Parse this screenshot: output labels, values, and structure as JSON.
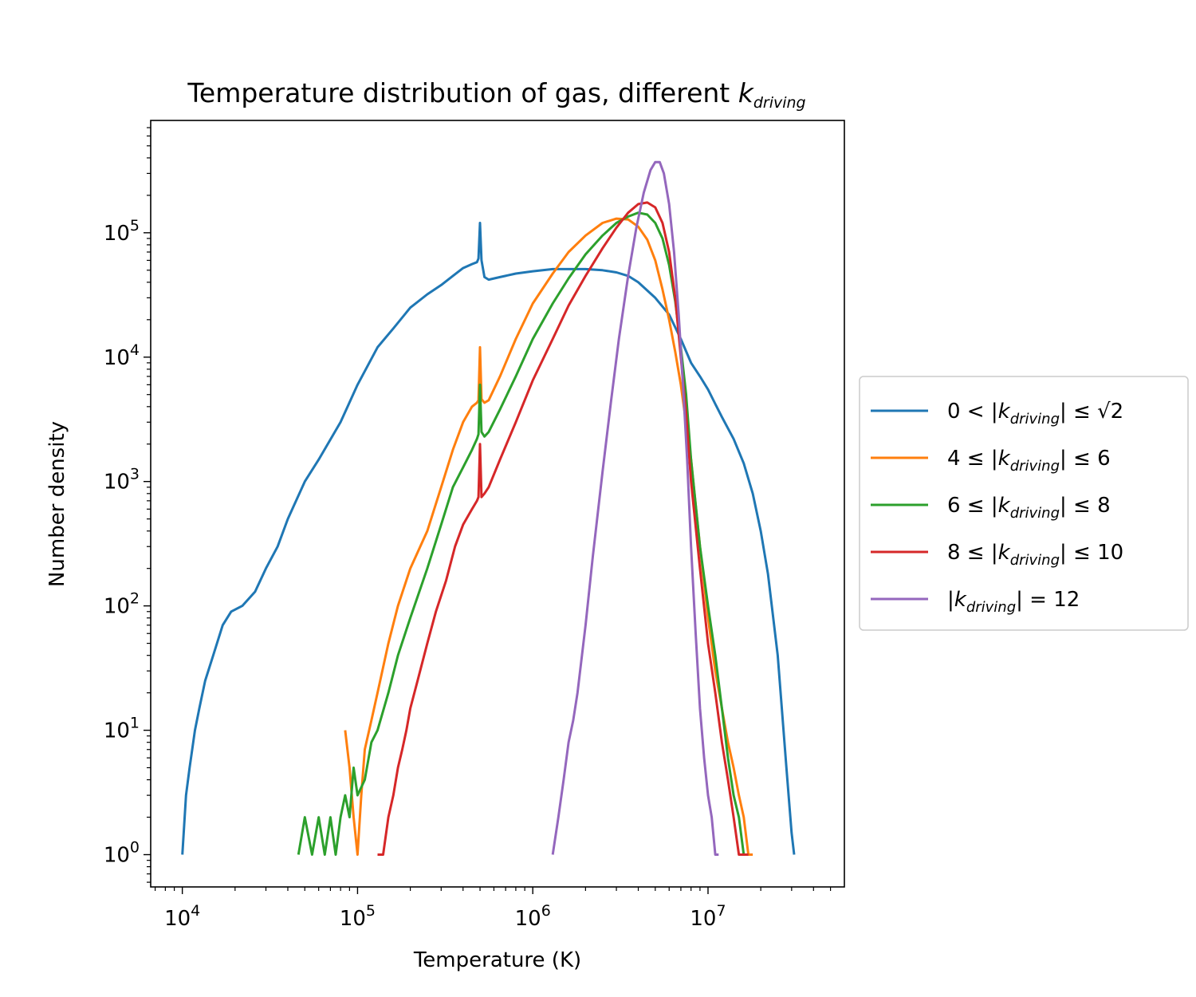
{
  "chart_data": {
    "type": "line",
    "title": {
      "main": "Temperature distribution of gas, different ",
      "symbol": "k",
      "subscript": "driving"
    },
    "xlabel": "Temperature (K)",
    "ylabel": "Number density",
    "x_scale": "log",
    "y_scale": "log",
    "xlim": [
      6600,
      60000000
    ],
    "ylim": [
      0.55,
      800000
    ],
    "x_ticks": [
      {
        "value": 10000,
        "base": "10",
        "exp": "4"
      },
      {
        "value": 100000,
        "base": "10",
        "exp": "5"
      },
      {
        "value": 1000000,
        "base": "10",
        "exp": "6"
      },
      {
        "value": 10000000,
        "base": "10",
        "exp": "7"
      }
    ],
    "y_ticks": [
      {
        "value": 1,
        "base": "10",
        "exp": "0"
      },
      {
        "value": 10,
        "base": "10",
        "exp": "1"
      },
      {
        "value": 100,
        "base": "10",
        "exp": "2"
      },
      {
        "value": 1000,
        "base": "10",
        "exp": "3"
      },
      {
        "value": 10000,
        "base": "10",
        "exp": "4"
      },
      {
        "value": 100000,
        "base": "10",
        "exp": "5"
      }
    ],
    "grid": false,
    "legend_placement": "outside-right",
    "series": [
      {
        "legend": {
          "pre": "0 < |",
          "k": "k",
          "sub": "driving",
          "post": "| ≤ √2"
        },
        "color": "#1f77b4",
        "x": [
          10000,
          10500,
          11000,
          11800,
          12500,
          13500,
          15000,
          17000,
          19000,
          22000,
          26000,
          30000,
          35000,
          40000,
          50000,
          60000,
          80000,
          100000,
          130000,
          160000,
          200000,
          250000,
          300000,
          350000,
          400000,
          450000,
          480000,
          490000,
          500000,
          510000,
          530000,
          560000,
          650000,
          800000,
          1000000,
          1300000,
          1600000,
          2000000,
          2500000,
          3000000,
          3500000,
          4000000,
          5000000,
          6000000,
          7000000,
          8000000,
          9000000,
          10000000,
          11000000,
          12000000,
          14000000,
          16000000,
          18000000,
          20000000,
          22000000,
          25000000,
          28000000,
          30000000,
          31000000
        ],
        "y": [
          1,
          3,
          5,
          10,
          15,
          25,
          40,
          70,
          90,
          100,
          130,
          200,
          300,
          500,
          1000,
          1500,
          3000,
          6000,
          12000,
          17000,
          25000,
          32000,
          38000,
          45000,
          52000,
          56000,
          58000,
          62000,
          120000,
          60000,
          44000,
          42000,
          44000,
          47000,
          49000,
          51000,
          51000,
          51000,
          50000,
          48000,
          45000,
          40000,
          30000,
          22000,
          14000,
          9000,
          7000,
          5500,
          4200,
          3300,
          2200,
          1400,
          800,
          400,
          180,
          40,
          5,
          1.5,
          1
        ]
      },
      {
        "legend": {
          "pre": "4 ≤ |",
          "k": "k",
          "sub": "driving",
          "post": "| ≤ 6"
        },
        "color": "#ff7f0e",
        "x": [
          85000,
          90000,
          95000,
          100000,
          105000,
          110000,
          120000,
          130000,
          150000,
          170000,
          200000,
          250000,
          300000,
          350000,
          400000,
          450000,
          480000,
          490000,
          500000,
          510000,
          530000,
          560000,
          650000,
          800000,
          1000000,
          1300000,
          1600000,
          2000000,
          2500000,
          3000000,
          3500000,
          4000000,
          4500000,
          5000000,
          5500000,
          6000000,
          6500000,
          7000000,
          8000000,
          9000000,
          10000000,
          11000000,
          12000000,
          13000000,
          14000000,
          15000000,
          16000000,
          17000000,
          18000000
        ],
        "y": [
          10,
          5,
          2,
          1,
          3,
          7,
          12,
          20,
          50,
          100,
          200,
          400,
          900,
          1800,
          3000,
          4000,
          4300,
          4500,
          12000,
          4600,
          4300,
          4500,
          7000,
          14000,
          27000,
          47000,
          70000,
          95000,
          120000,
          130000,
          128000,
          112000,
          88000,
          60000,
          35000,
          20000,
          11000,
          6000,
          1500,
          300,
          80,
          30,
          15,
          8,
          5,
          3,
          2,
          1,
          1
        ]
      },
      {
        "legend": {
          "pre": "6 ≤ |",
          "k": "k",
          "sub": "driving",
          "post": "| ≤ 8"
        },
        "color": "#2ca02c",
        "x": [
          46000,
          50000,
          55000,
          60000,
          65000,
          70000,
          75000,
          80000,
          85000,
          90000,
          95000,
          100000,
          110000,
          120000,
          130000,
          150000,
          170000,
          200000,
          250000,
          300000,
          350000,
          400000,
          450000,
          480000,
          490000,
          500000,
          510000,
          530000,
          560000,
          650000,
          800000,
          1000000,
          1300000,
          1600000,
          2000000,
          2500000,
          3000000,
          3500000,
          4000000,
          4500000,
          5000000,
          5500000,
          6000000,
          6500000,
          7000000,
          7500000,
          8000000,
          9000000,
          10000000,
          11000000,
          12000000,
          13000000,
          14000000,
          15000000,
          16000000,
          17000000
        ],
        "y": [
          1,
          2,
          1,
          2,
          1,
          2,
          1,
          2,
          3,
          2,
          5,
          3,
          4,
          8,
          10,
          20,
          40,
          80,
          200,
          450,
          900,
          1300,
          1800,
          2200,
          2400,
          6000,
          2500,
          2300,
          2500,
          3800,
          7000,
          14000,
          27000,
          43000,
          67000,
          95000,
          120000,
          135000,
          145000,
          140000,
          120000,
          90000,
          55000,
          28000,
          12000,
          5000,
          1500,
          300,
          100,
          40,
          15,
          6,
          3,
          2,
          1,
          1
        ]
      },
      {
        "legend": {
          "pre": "8 ≤ |",
          "k": "k",
          "sub": "driving",
          "post": "| ≤ 10"
        },
        "color": "#d62728",
        "x": [
          130000,
          140000,
          150000,
          160000,
          170000,
          180000,
          190000,
          200000,
          220000,
          250000,
          280000,
          320000,
          360000,
          400000,
          450000,
          480000,
          490000,
          500000,
          510000,
          530000,
          560000,
          650000,
          800000,
          1000000,
          1300000,
          1600000,
          2000000,
          2500000,
          3000000,
          3500000,
          4000000,
          4500000,
          5000000,
          5500000,
          6000000,
          6500000,
          7000000,
          7500000,
          8000000,
          9000000,
          10000000,
          11000000,
          12000000,
          13000000,
          14000000,
          15000000,
          16000000,
          17000000
        ],
        "y": [
          1,
          1,
          2,
          3,
          5,
          7,
          10,
          15,
          25,
          50,
          90,
          160,
          300,
          450,
          600,
          700,
          750,
          2000,
          750,
          800,
          900,
          1500,
          3000,
          6500,
          14000,
          26000,
          45000,
          75000,
          110000,
          145000,
          170000,
          175000,
          160000,
          120000,
          70000,
          30000,
          10000,
          3500,
          1000,
          200,
          50,
          20,
          8,
          4,
          2,
          1,
          1,
          1
        ]
      },
      {
        "legend": {
          "pre": "|",
          "k": "k",
          "sub": "driving",
          "post": "| = 12"
        },
        "color": "#9467bd",
        "x": [
          1300000,
          1400000,
          1500000,
          1600000,
          1700000,
          1800000,
          2000000,
          2200000,
          2500000,
          2800000,
          3100000,
          3500000,
          3900000,
          4300000,
          4700000,
          5000000,
          5300000,
          5600000,
          6000000,
          6400000,
          6800000,
          7200000,
          7600000,
          8000000,
          8500000,
          9000000,
          9500000,
          10000000,
          10500000,
          11000000,
          11500000
        ],
        "y": [
          1,
          2,
          4,
          8,
          12,
          20,
          70,
          250,
          1200,
          4500,
          14000,
          45000,
          110000,
          210000,
          320000,
          370000,
          370000,
          300000,
          170000,
          70000,
          22000,
          6000,
          1500,
          300,
          60,
          15,
          6,
          3,
          2,
          1,
          1
        ]
      }
    ]
  }
}
